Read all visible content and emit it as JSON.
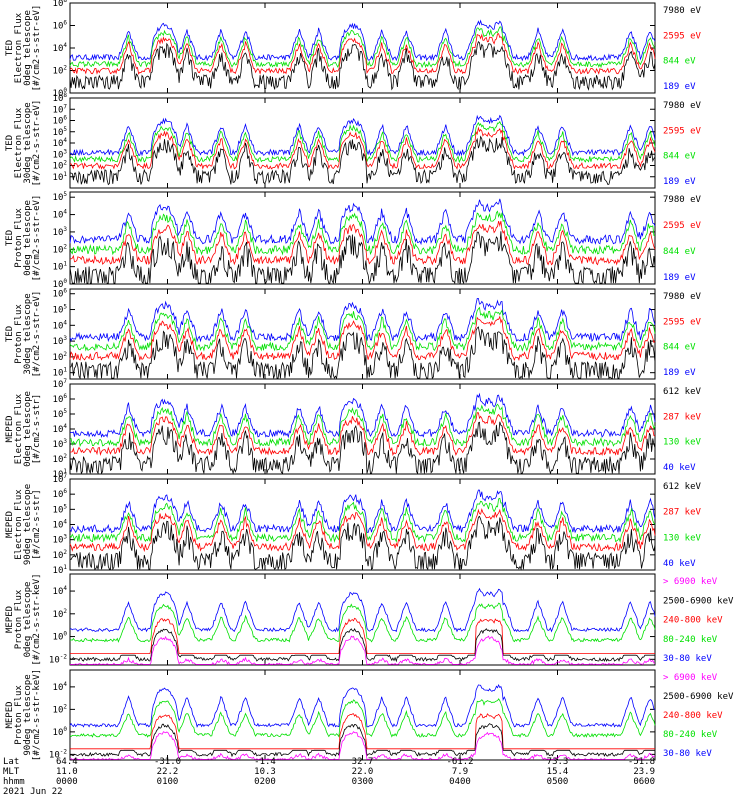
{
  "chart_data": {
    "type": "line",
    "time_axis": {
      "row_labels": [
        "Lat",
        "MLT",
        "hhmm",
        "2021 Jun 22"
      ],
      "ticks": [
        {
          "lat": "64.4",
          "mlt": "11.0",
          "hhmm": "0000"
        },
        {
          "lat": "-31.0",
          "mlt": "22.2",
          "hhmm": "0100"
        },
        {
          "lat": "-1.4",
          "mlt": "10.3",
          "hhmm": "0200"
        },
        {
          "lat": "32.7",
          "mlt": "22.0",
          "hhmm": "0300"
        },
        {
          "lat": "-61.2",
          "mlt": "7.9",
          "hhmm": "0400"
        },
        {
          "lat": "73.3",
          "mlt": "15.4",
          "hhmm": "0500"
        },
        {
          "lat": "-51.8",
          "mlt": "23.9",
          "hhmm": "0600"
        }
      ],
      "x_range_hours": [
        0,
        6
      ]
    },
    "colors": {
      "black": "#000000",
      "red": "#ff0000",
      "green": "#00e000",
      "blue": "#0000ff",
      "magenta": "#ff00ff"
    },
    "panels": [
      {
        "ylabel": [
          "TED",
          "Electron Flux",
          "0deg telescope",
          "[#/cm2-s-str-eV]"
        ],
        "y_exponents": [
          0,
          2,
          4,
          6,
          8
        ],
        "ylim_log": [
          0,
          8
        ],
        "yscale": "log",
        "legend": [
          {
            "label": "7980 eV",
            "color": "black"
          },
          {
            "label": "2595 eV",
            "color": "red"
          },
          {
            "label": "844 eV",
            "color": "green"
          },
          {
            "label": "189 eV",
            "color": "blue"
          }
        ]
      },
      {
        "ylabel": [
          "TED",
          "Electron Flux",
          "30deg telescope",
          "[#/cm2-s-str-eV]"
        ],
        "y_exponents": [
          1,
          2,
          3,
          4,
          5,
          6,
          7,
          8
        ],
        "ylim_log": [
          0,
          8
        ],
        "yscale": "log",
        "legend": [
          {
            "label": "7980 eV",
            "color": "black"
          },
          {
            "label": "2595 eV",
            "color": "red"
          },
          {
            "label": "844 eV",
            "color": "green"
          },
          {
            "label": "189 eV",
            "color": "blue"
          }
        ]
      },
      {
        "ylabel": [
          "TED",
          "Proton Flux",
          "0deg telescope",
          "[#/cm2-s-str-eV]"
        ],
        "y_exponents": [
          0,
          1,
          2,
          3,
          4,
          5
        ],
        "ylim_log": [
          0,
          5.3
        ],
        "yscale": "log",
        "legend": [
          {
            "label": "7980 eV",
            "color": "black"
          },
          {
            "label": "2595 eV",
            "color": "red"
          },
          {
            "label": "844 eV",
            "color": "green"
          },
          {
            "label": "189 eV",
            "color": "blue"
          }
        ]
      },
      {
        "ylabel": [
          "TED",
          "Proton Flux",
          "30deg telescope",
          "[#/cm2-s-str-eV]"
        ],
        "y_exponents": [
          1,
          2,
          3,
          4,
          5,
          6
        ],
        "ylim_log": [
          0.6,
          6.3
        ],
        "yscale": "log",
        "legend": [
          {
            "label": "7980 eV",
            "color": "black"
          },
          {
            "label": "2595 eV",
            "color": "red"
          },
          {
            "label": "844 eV",
            "color": "green"
          },
          {
            "label": "189 eV",
            "color": "blue"
          }
        ]
      },
      {
        "ylabel": [
          "MEPED",
          "Electron Flux",
          "0deg telescope",
          "[#/cm2-s-str]"
        ],
        "y_exponents": [
          1,
          2,
          3,
          4,
          5,
          6,
          7
        ],
        "ylim_log": [
          1,
          7
        ],
        "yscale": "log",
        "legend": [
          {
            "label": "612 keV",
            "color": "black"
          },
          {
            "label": "287 keV",
            "color": "red"
          },
          {
            "label": "130 keV",
            "color": "green"
          },
          {
            "label": "40 keV",
            "color": "blue"
          }
        ]
      },
      {
        "ylabel": [
          "MEPED",
          "Electron Flux",
          "90deg telescope",
          "[#/cm2-s-str]"
        ],
        "y_exponents": [
          1,
          2,
          3,
          4,
          5,
          6,
          7
        ],
        "ylim_log": [
          1,
          7
        ],
        "yscale": "log",
        "legend": [
          {
            "label": "612 keV",
            "color": "black"
          },
          {
            "label": "287 keV",
            "color": "red"
          },
          {
            "label": "130 keV",
            "color": "green"
          },
          {
            "label": "40 keV",
            "color": "blue"
          }
        ]
      },
      {
        "ylabel": [
          "MEPED",
          "Proton Flux",
          "0deg telescope",
          "[#/cm2-s-str-keV]"
        ],
        "y_exponents": [
          -2,
          0,
          2,
          4
        ],
        "ylim_log": [
          -2.5,
          5.5
        ],
        "yscale": "log",
        "legend": [
          {
            "label": "> 6900 keV",
            "color": "magenta"
          },
          {
            "label": "2500-6900 keV",
            "color": "black"
          },
          {
            "label": "240-800 keV",
            "color": "red"
          },
          {
            "label": "80-240 keV",
            "color": "green"
          },
          {
            "label": "30-80 keV",
            "color": "blue"
          }
        ]
      },
      {
        "ylabel": [
          "MEPED",
          "Proton Flux",
          "90deg telescope",
          "[#/cm2-s-str-keV]"
        ],
        "y_exponents": [
          -2,
          0,
          2,
          4
        ],
        "ylim_log": [
          -2.5,
          5.5
        ],
        "yscale": "log",
        "legend": [
          {
            "label": "> 6900 keV",
            "color": "magenta"
          },
          {
            "label": "2500-6900 keV",
            "color": "black"
          },
          {
            "label": "240-800 keV",
            "color": "red"
          },
          {
            "label": "80-240 keV",
            "color": "green"
          },
          {
            "label": "30-80 keV",
            "color": "blue"
          }
        ]
      }
    ]
  }
}
